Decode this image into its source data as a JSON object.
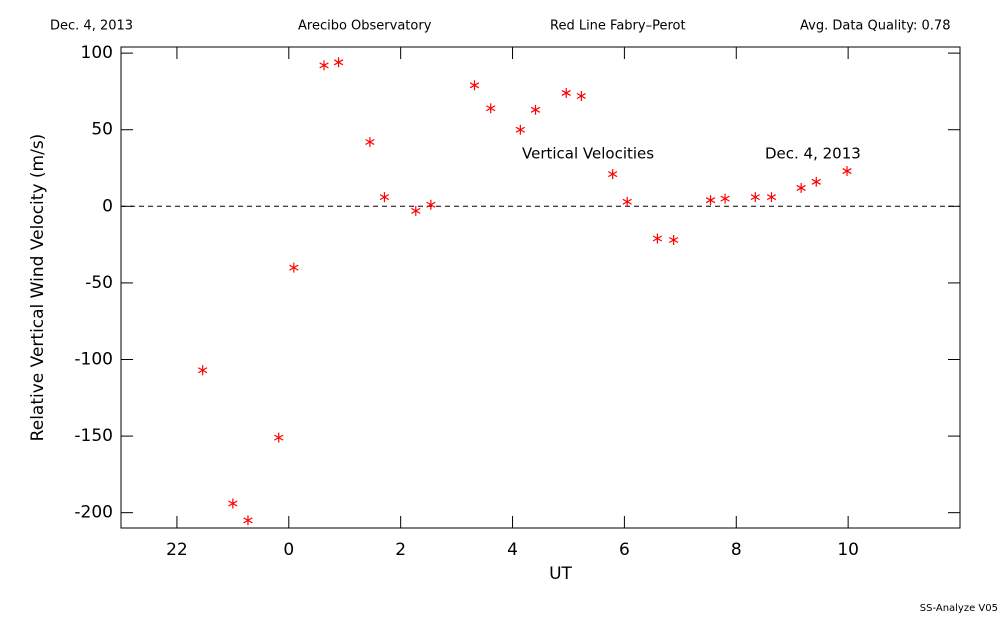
{
  "chart_data": {
    "type": "scatter",
    "header": [
      "Dec. 4, 2013",
      "Arecibo Observatory",
      "Red Line Fabry–Perot",
      "Avg. Data Quality: 0.78"
    ],
    "annotations": [
      "Vertical Velocities",
      "Dec. 4, 2013"
    ],
    "footer": "SS-Analyze V05",
    "x_label": "UT",
    "y_label": "Relative Vertical Wind Velocity (m/s)",
    "xlim": [
      -3,
      12
    ],
    "xticks": [
      {
        "value": -2,
        "label": "22"
      },
      0,
      2,
      4,
      6,
      8,
      10
    ],
    "ylim": [
      -210,
      104
    ],
    "yticks": [
      -200,
      -150,
      -100,
      -50,
      0,
      50,
      100
    ],
    "reference_line": 0,
    "series": [
      {
        "color": "#ff0000",
        "x": [
          -1.54,
          -1.0,
          -0.73,
          -0.18,
          0.09,
          0.63,
          0.89,
          1.45,
          1.71,
          2.27,
          2.54,
          3.32,
          3.61,
          4.14,
          4.41,
          4.96,
          5.23,
          5.79,
          6.05,
          6.59,
          6.88,
          7.54,
          7.8,
          8.34,
          8.63,
          9.16,
          9.43,
          9.98
        ],
        "values": [
          -107,
          -194,
          -205,
          -151,
          -40,
          92,
          94,
          42,
          6,
          -3,
          1,
          79,
          64,
          50,
          63,
          74,
          72,
          21,
          3,
          -21,
          -22,
          4,
          5,
          6,
          6,
          12,
          16,
          23
        ]
      }
    ]
  }
}
